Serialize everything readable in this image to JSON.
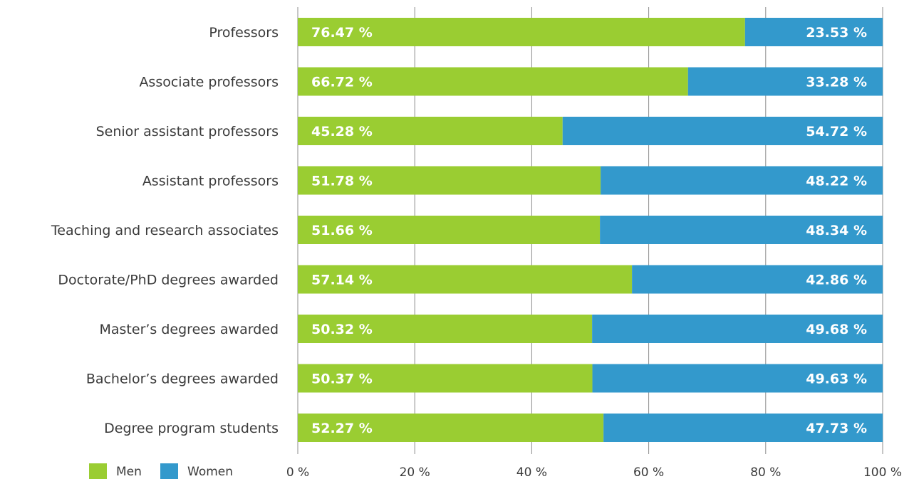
{
  "chart_data": {
    "type": "bar",
    "orientation": "horizontal",
    "stacked": true,
    "categories": [
      "Professors",
      "Associate professors",
      "Senior assistant professors",
      "Assistant professors",
      "Teaching and research associates",
      "Doctorate/PhD degrees awarded",
      "Master’s degrees awarded",
      "Bachelor’s degrees awarded",
      "Degree program students"
    ],
    "series": [
      {
        "name": "Men",
        "color": "#9ACD32",
        "values": [
          76.47,
          66.72,
          45.28,
          51.78,
          51.66,
          57.14,
          50.32,
          50.37,
          52.27
        ],
        "labels": [
          "76.47 %",
          "66.72 %",
          "45.28 %",
          "51.78 %",
          "51.66 %",
          "57.14 %",
          "50.32 %",
          "50.37 %",
          "52.27 %"
        ]
      },
      {
        "name": "Women",
        "color": "#3399CC",
        "values": [
          23.53,
          33.28,
          54.72,
          48.22,
          48.34,
          42.86,
          49.68,
          49.63,
          47.73
        ],
        "labels": [
          "23.53 %",
          "33.28 %",
          "54.72 %",
          "48.22 %",
          "48.34 %",
          "42.86 %",
          "49.68 %",
          "49.63 %",
          "47.73 %"
        ]
      }
    ],
    "xlim": [
      0,
      100
    ],
    "x_ticks": [
      "0 %",
      "20 %",
      "40 %",
      "60 %",
      "80 %",
      "100 %"
    ],
    "grid": true,
    "legend_position": "bottom-left",
    "title": "",
    "xlabel": "",
    "ylabel": ""
  }
}
